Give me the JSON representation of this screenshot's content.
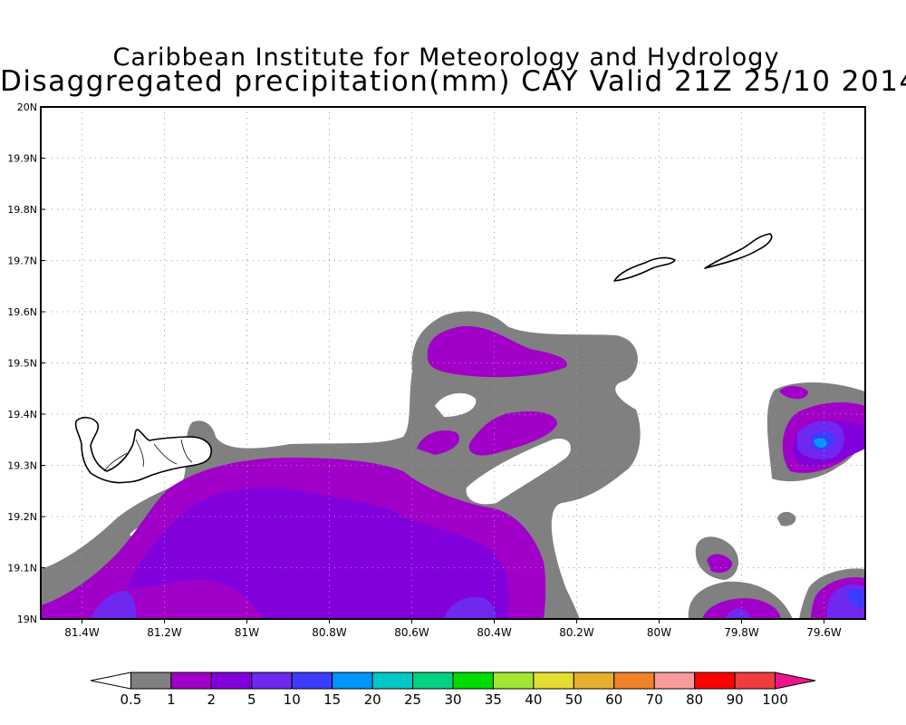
{
  "title": {
    "line1": "Caribbean Institute for Meteorology and Hydrology",
    "line2": "Disaggregated precipitation(mm) CAY Valid 21Z 25/10 2014"
  },
  "map": {
    "region": "Cayman Islands",
    "lon_range": [
      -81.5,
      -79.5
    ],
    "lat_range": [
      19.0,
      20.0
    ],
    "grid": true,
    "x_ticks": [
      "81.4W",
      "81.2W",
      "81W",
      "80.8W",
      "80.6W",
      "80.4W",
      "80.2W",
      "80W",
      "79.8W",
      "79.6W"
    ],
    "x_tick_values": [
      -81.4,
      -81.2,
      -81.0,
      -80.8,
      -80.6,
      -80.4,
      -80.2,
      -80.0,
      -79.8,
      -79.6
    ],
    "y_ticks": [
      "19N",
      "19.1N",
      "19.2N",
      "19.3N",
      "19.4N",
      "19.5N",
      "19.6N",
      "19.7N",
      "19.8N",
      "19.9N",
      "20N"
    ],
    "y_tick_values": [
      19.0,
      19.1,
      19.2,
      19.3,
      19.4,
      19.5,
      19.6,
      19.7,
      19.8,
      19.9,
      20.0
    ]
  },
  "colorbar": {
    "labels": [
      "0.5",
      "1",
      "2",
      "5",
      "10",
      "15",
      "20",
      "25",
      "30",
      "35",
      "40",
      "50",
      "60",
      "70",
      "80",
      "90",
      "100"
    ],
    "colors": [
      "#ffffff",
      "#808080",
      "#a000c8",
      "#8200dc",
      "#6e28f0",
      "#3c3cff",
      "#0096ff",
      "#00c8c8",
      "#00d282",
      "#00dc00",
      "#a0e632",
      "#e6dc32",
      "#e6af2d",
      "#f08228",
      "#fa9b9b",
      "#ff0000",
      "#f03c3c",
      "#f0148c"
    ]
  },
  "legend_colors": {
    "gray_0_5_to_1": "#808080",
    "purple_1_to_2": "#a000c8",
    "violet_2_to_5": "#8200dc",
    "indigo_5_to_10": "#6e28f0",
    "blue_10_to_15": "#3c3cff",
    "cyan_15_to_20": "#0096ff"
  }
}
